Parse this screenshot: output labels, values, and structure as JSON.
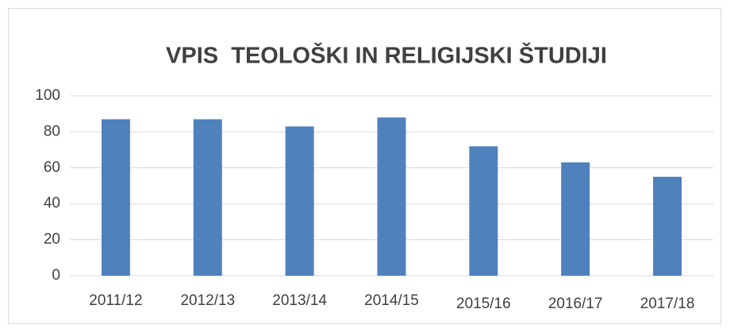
{
  "chart_data": {
    "type": "bar",
    "title": "VPIS  TEOLOŠKI IN RELIGIJSKI ŠTUDIJI",
    "categories": [
      "2011/12",
      "2012/13",
      "2013/14",
      "2014/15",
      "2015/16",
      "2016/17",
      "2017/18"
    ],
    "values": [
      87,
      87,
      83,
      88,
      72,
      63,
      55
    ],
    "color": "#4f81bd",
    "ylim": [
      0,
      100
    ],
    "yticks": [
      0,
      20,
      40,
      60,
      80,
      100
    ],
    "grid": true
  }
}
